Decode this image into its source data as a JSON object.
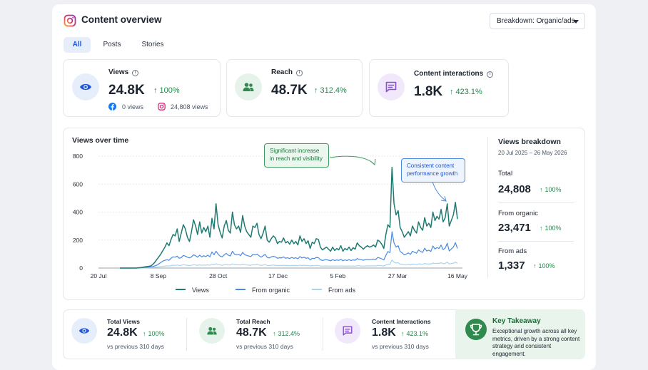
{
  "header": {
    "title": "Content overview",
    "dropdown_label": "Breakdown: Organic/ads"
  },
  "tabs": [
    {
      "label": "All",
      "active": true
    },
    {
      "label": "Posts",
      "active": false
    },
    {
      "label": "Stories",
      "active": false
    }
  ],
  "metrics": [
    {
      "label": "Views",
      "value": "24.8K",
      "pct": "100%",
      "icon": "eye-icon",
      "color": "#1d56d8",
      "bg": "#e6eefc"
    },
    {
      "label": "Reach",
      "value": "48.7K",
      "pct": "312.4%",
      "icon": "users-icon",
      "color": "#2f8a4e",
      "bg": "#e5f3ea"
    },
    {
      "label": "Content interactions",
      "value": "1.8K",
      "pct": "423.1%",
      "icon": "message-icon",
      "color": "#8a4fd8",
      "bg": "#f1e8fb"
    }
  ],
  "views_sources": {
    "facebook": "0 views",
    "instagram": "24,808 views"
  },
  "chart_data": {
    "type": "line",
    "title": "Views over time",
    "x_ticks": [
      "20 Jul",
      "8 Sep",
      "28 Oct",
      "17 Dec",
      "5 Feb",
      "27 Mar",
      "16 May"
    ],
    "y_ticks": [
      0,
      200,
      400,
      600,
      800
    ],
    "ylim": [
      0,
      800
    ],
    "grid": true,
    "legend_position": "bottom",
    "series": [
      {
        "name": "Views",
        "color": "#1f7a72",
        "values": [
          0,
          0,
          0,
          0,
          0,
          0,
          0,
          0,
          0,
          2,
          3,
          5,
          8,
          10,
          12,
          15,
          25,
          40,
          60,
          80,
          100,
          125,
          150,
          180,
          160,
          205,
          240,
          230,
          280,
          190,
          250,
          310,
          280,
          220,
          190,
          260,
          345,
          300,
          240,
          330,
          250,
          290,
          260,
          300,
          220,
          355,
          280,
          460,
          310,
          255,
          215,
          300,
          340,
          270,
          250,
          400,
          310,
          280,
          300,
          255,
          375,
          300,
          260,
          240,
          220,
          300,
          290,
          320,
          240,
          210,
          250,
          300,
          200,
          185,
          210,
          230,
          215,
          175,
          190,
          185,
          215,
          180,
          190,
          170,
          200,
          175,
          190,
          165,
          230,
          190,
          210,
          175,
          195,
          140,
          185,
          175,
          210,
          205,
          150,
          130,
          140,
          150,
          135,
          120,
          150,
          125,
          140,
          130,
          160,
          120,
          140,
          130,
          150,
          125,
          145,
          135,
          180,
          160,
          150,
          135,
          150,
          160,
          150,
          155,
          165,
          150,
          200,
          190,
          170,
          140,
          240,
          310,
          290,
          720,
          460,
          380,
          410,
          290,
          260,
          220,
          240,
          260,
          230,
          300,
          270,
          250,
          330,
          290,
          270,
          360,
          300,
          320,
          290,
          400,
          340,
          370,
          350,
          420,
          330,
          360,
          460,
          300,
          340,
          380,
          470,
          350
        ]
      },
      {
        "name": "From organic",
        "color": "#4a8be0",
        "values": [
          0,
          0,
          0,
          0,
          0,
          0,
          0,
          0,
          0,
          1,
          2,
          3,
          4,
          5,
          6,
          8,
          10,
          15,
          20,
          30,
          40,
          50,
          55,
          60,
          55,
          70,
          80,
          78,
          85,
          70,
          75,
          90,
          85,
          78,
          72,
          80,
          95,
          88,
          78,
          92,
          80,
          88,
          82,
          92,
          80,
          115,
          95,
          120,
          100,
          85,
          80,
          95,
          105,
          92,
          86,
          120,
          100,
          94,
          98,
          88,
          112,
          96,
          90,
          86,
          82,
          98,
          94,
          100,
          88,
          78,
          88,
          98,
          76,
          72,
          80,
          84,
          80,
          70,
          74,
          72,
          80,
          70,
          74,
          68,
          76,
          70,
          74,
          66,
          82,
          72,
          78,
          70,
          74,
          58,
          70,
          68,
          76,
          74,
          60,
          54,
          58,
          60,
          56,
          52,
          60,
          54,
          58,
          55,
          62,
          52,
          58,
          54,
          60,
          54,
          58,
          56,
          68,
          62,
          60,
          56,
          60,
          62,
          60,
          62,
          64,
          60,
          76,
          72,
          66,
          58,
          90,
          118,
          110,
          260,
          180,
          150,
          160,
          118,
          108,
          95,
          100,
          108,
          98,
          120,
          112,
          106,
          130,
          118,
          112,
          142,
          122,
          128,
          118,
          158,
          136,
          146,
          140,
          164,
          132,
          142,
          178,
          122,
          136,
          150,
          182,
          140
        ]
      },
      {
        "name": "From ads",
        "color": "#a9d4f0",
        "values": [
          0,
          0,
          0,
          0,
          0,
          0,
          0,
          0,
          0,
          0,
          0,
          1,
          1,
          2,
          2,
          3,
          4,
          5,
          6,
          8,
          10,
          12,
          14,
          16,
          15,
          18,
          20,
          19,
          22,
          18,
          20,
          24,
          22,
          20,
          18,
          20,
          24,
          22,
          20,
          23,
          20,
          22,
          21,
          23,
          20,
          28,
          24,
          30,
          25,
          22,
          20,
          24,
          26,
          23,
          22,
          30,
          25,
          23,
          24,
          22,
          28,
          24,
          22,
          21,
          20,
          24,
          23,
          25,
          22,
          19,
          22,
          24,
          19,
          18,
          20,
          21,
          20,
          18,
          19,
          18,
          20,
          18,
          19,
          17,
          19,
          18,
          19,
          17,
          21,
          18,
          20,
          18,
          19,
          15,
          18,
          17,
          19,
          19,
          15,
          14,
          15,
          15,
          14,
          13,
          15,
          14,
          15,
          14,
          16,
          13,
          15,
          14,
          15,
          14,
          15,
          14,
          17,
          16,
          15,
          14,
          15,
          16,
          15,
          16,
          16,
          15,
          19,
          18,
          17,
          15,
          22,
          28,
          26,
          58,
          42,
          36,
          38,
          28,
          26,
          23,
          24,
          26,
          23,
          28,
          27,
          25,
          30,
          28,
          27,
          33,
          29,
          30,
          28,
          36,
          32,
          34,
          33,
          38,
          31,
          33,
          42,
          29,
          32,
          35,
          43,
          33
        ]
      }
    ],
    "annotations": [
      {
        "text": "Significant increase in reach and visibility",
        "color": "#3d9c5e"
      },
      {
        "text": "Consistent content performance growth",
        "color": "#4a8be0"
      }
    ]
  },
  "breakdown": {
    "title": "Views breakdown",
    "date_range": "20 Jul 2025 – 26 May 2026",
    "rows": [
      {
        "label": "Total",
        "value": "24,808",
        "pct": "100%"
      },
      {
        "label": "From organic",
        "value": "23,471",
        "pct": "100%"
      },
      {
        "label": "From ads",
        "value": "1,337",
        "pct": "100%"
      }
    ]
  },
  "summary": [
    {
      "label": "Total Views",
      "value": "24.8K",
      "pct": "100%",
      "sub": "vs previous 310 days",
      "icon": "eye-icon"
    },
    {
      "label": "Total Reach",
      "value": "48.7K",
      "pct": "312.4%",
      "sub": "vs previous 310 days",
      "icon": "users-icon"
    },
    {
      "label": "Content Interactions",
      "value": "1.8K",
      "pct": "423.1%",
      "sub": "vs previous 310 days",
      "icon": "message-icon"
    }
  ],
  "takeaway": {
    "title": "Key Takeaway",
    "body": "Exceptional growth across all key metrics, driven by a strong content strategy and consistent engagement.",
    "icon": "trophy-icon"
  }
}
